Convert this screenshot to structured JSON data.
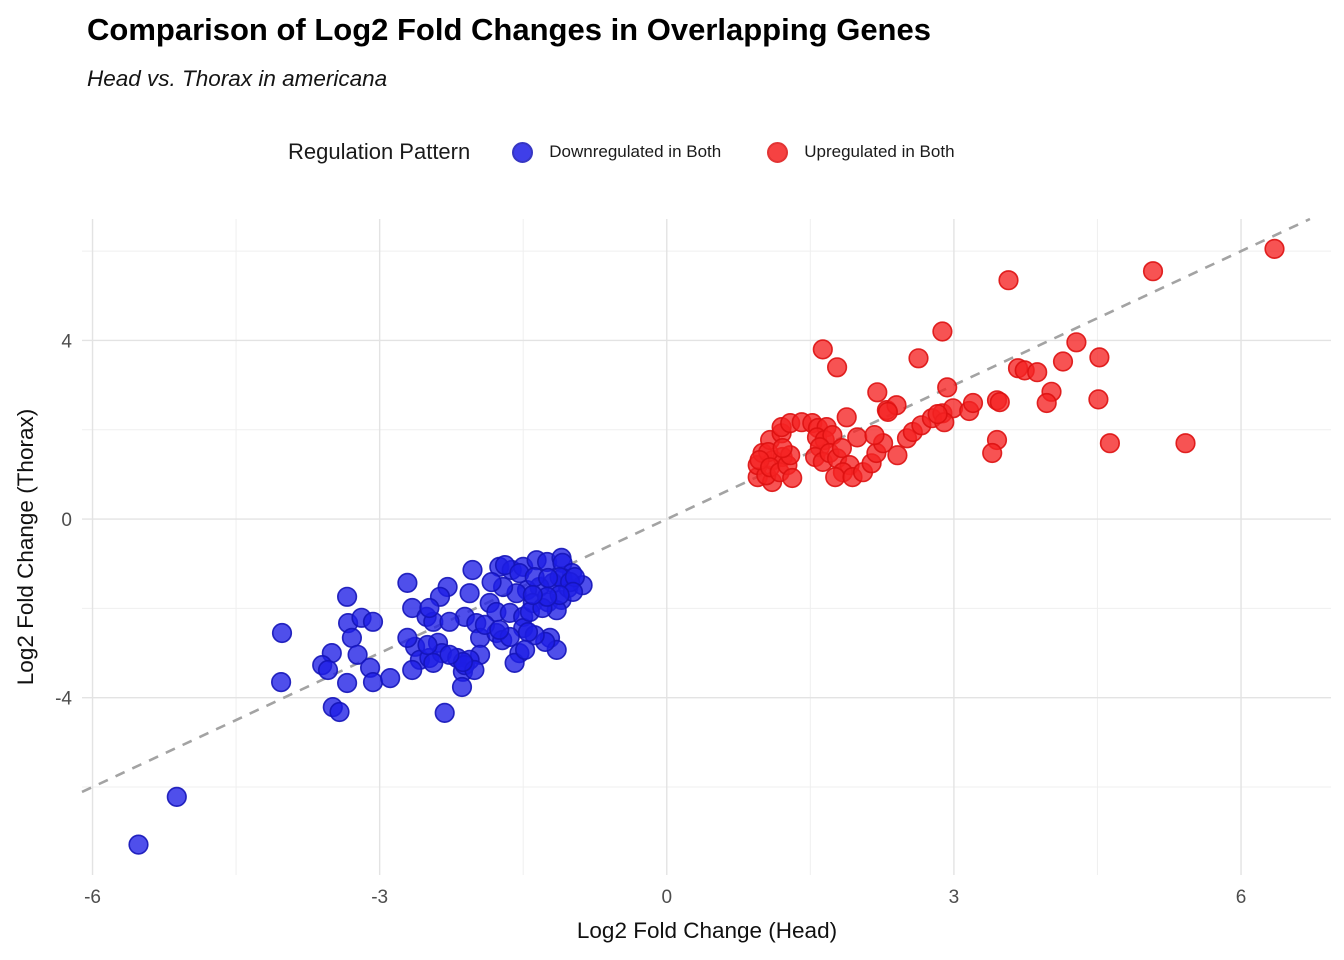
{
  "chart": {
    "title": "Comparison of Log2 Fold Changes in Overlapping Genes",
    "subtitle": "Head vs. Thorax in americana"
  },
  "legend": {
    "title": "Regulation Pattern",
    "position": "top",
    "items": [
      {
        "label": "Downregulated in Both",
        "color": "#1E1EE6",
        "stroke": "#1414B8"
      },
      {
        "label": "Upregulated in Both",
        "color": "#F52222",
        "stroke": "#DD1111"
      }
    ]
  },
  "chart_data": {
    "type": "scatter",
    "title": "Comparison of Log2 Fold Changes in Overlapping Genes",
    "subtitle": "Head vs. Thorax in americana",
    "xlabel": "Log2 Fold Change (Head)",
    "ylabel": "Log2 Fold Change (Thorax)",
    "xlim": [
      -6.11,
      6.94
    ],
    "ylim": [
      -7.97,
      6.72
    ],
    "x_ticks": [
      -6,
      -3,
      0,
      3,
      6
    ],
    "y_ticks": [
      -4,
      0,
      4
    ],
    "x_minor_ticks": [
      -4.5,
      -1.5,
      1.5,
      4.5
    ],
    "y_minor_ticks": [
      -6,
      -2,
      2,
      6
    ],
    "grid": true,
    "legend_position": "top",
    "reference_line": {
      "type": "identity",
      "slope": 1,
      "intercept": 0,
      "style": "dashed",
      "color": "#A3A3A3"
    },
    "series": [
      {
        "name": "Downregulated in Both",
        "color": "#1E1EE6",
        "stroke": "#1414B8",
        "points": [
          [
            -5.52,
            -7.29
          ],
          [
            -5.12,
            -6.22
          ],
          [
            -4.02,
            -2.55
          ],
          [
            -4.03,
            -3.65
          ],
          [
            -3.34,
            -1.74
          ],
          [
            -3.33,
            -2.33
          ],
          [
            -3.19,
            -2.21
          ],
          [
            -3.07,
            -2.3
          ],
          [
            -3.29,
            -2.66
          ],
          [
            -3.23,
            -3.04
          ],
          [
            -3.5,
            -3.0
          ],
          [
            -3.6,
            -3.27
          ],
          [
            -3.54,
            -3.38
          ],
          [
            -3.34,
            -3.67
          ],
          [
            -3.1,
            -3.33
          ],
          [
            -3.07,
            -3.65
          ],
          [
            -3.49,
            -4.21
          ],
          [
            -3.42,
            -4.32
          ],
          [
            -2.71,
            -1.43
          ],
          [
            -2.03,
            -1.14
          ],
          [
            -2.29,
            -1.52
          ],
          [
            -2.37,
            -1.74
          ],
          [
            -2.66,
            -1.99
          ],
          [
            -2.51,
            -2.19
          ],
          [
            -2.44,
            -2.3
          ],
          [
            -2.06,
            -1.66
          ],
          [
            -2.11,
            -2.19
          ],
          [
            -1.99,
            -2.33
          ],
          [
            -1.95,
            -2.66
          ],
          [
            -1.75,
            -1.07
          ],
          [
            -1.62,
            -1.14
          ],
          [
            -1.5,
            -1.07
          ],
          [
            -1.36,
            -0.92
          ],
          [
            -1.25,
            -0.96
          ],
          [
            -1.1,
            -0.87
          ],
          [
            -1.09,
            -0.98
          ],
          [
            -0.99,
            -1.21
          ],
          [
            -1.09,
            -1.32
          ],
          [
            -1.19,
            -1.43
          ],
          [
            -1.33,
            -1.52
          ],
          [
            -1.46,
            -1.59
          ],
          [
            -1.57,
            -1.66
          ],
          [
            -1.71,
            -1.52
          ],
          [
            -1.83,
            -1.41
          ],
          [
            -1.85,
            -1.88
          ],
          [
            -1.78,
            -2.08
          ],
          [
            -1.64,
            -2.1
          ],
          [
            -1.5,
            -2.19
          ],
          [
            -1.4,
            -1.88
          ],
          [
            -1.24,
            -1.86
          ],
          [
            -1.1,
            -1.81
          ],
          [
            -1.03,
            -1.54
          ],
          [
            -0.88,
            -1.48
          ],
          [
            -1.78,
            -2.55
          ],
          [
            -1.72,
            -2.71
          ],
          [
            -1.5,
            -2.44
          ],
          [
            -1.95,
            -3.04
          ],
          [
            -1.54,
            -3.0
          ],
          [
            -1.22,
            -2.66
          ],
          [
            -1.15,
            -2.93
          ],
          [
            -2.39,
            -2.77
          ],
          [
            -2.63,
            -2.86
          ],
          [
            -2.71,
            -2.66
          ],
          [
            -2.58,
            -3.15
          ],
          [
            -2.66,
            -3.38
          ],
          [
            -2.48,
            -3.11
          ],
          [
            -2.35,
            -3.0
          ],
          [
            -2.19,
            -3.11
          ],
          [
            -2.06,
            -3.15
          ],
          [
            -2.13,
            -3.42
          ],
          [
            -2.14,
            -3.76
          ],
          [
            -2.32,
            -4.34
          ],
          [
            -2.89,
            -3.56
          ],
          [
            -2.44,
            -3.22
          ],
          [
            -2.11,
            -3.27
          ],
          [
            -2.01,
            -3.38
          ],
          [
            -1.59,
            -3.22
          ],
          [
            -2.5,
            -2.82
          ],
          [
            -2.27,
            -2.3
          ],
          [
            -1.27,
            -2.75
          ],
          [
            -1.38,
            -2.6
          ],
          [
            -1.45,
            -2.53
          ],
          [
            -1.64,
            -2.64
          ],
          [
            -1.48,
            -2.93
          ],
          [
            -1.12,
            -1.3
          ],
          [
            -1.01,
            -1.41
          ],
          [
            -1.69,
            -1.03
          ],
          [
            -1.43,
            -2.08
          ],
          [
            -1.15,
            -2.04
          ],
          [
            -1.3,
            -1.99
          ],
          [
            -2.48,
            -1.99
          ],
          [
            -2.13,
            -3.2
          ],
          [
            -2.27,
            -3.04
          ],
          [
            -1.54,
            -1.21
          ],
          [
            -1.38,
            -1.3
          ],
          [
            -1.24,
            -1.32
          ],
          [
            -0.96,
            -1.3
          ],
          [
            -0.98,
            -1.63
          ],
          [
            -1.12,
            -1.7
          ],
          [
            -1.25,
            -1.74
          ],
          [
            -1.4,
            -1.7
          ],
          [
            -1.9,
            -2.37
          ],
          [
            -1.75,
            -2.48
          ]
        ]
      },
      {
        "name": "Upregulated in Both",
        "color": "#F52222",
        "stroke": "#DD1111",
        "points": [
          [
            0.95,
            0.94
          ],
          [
            1.1,
            0.83
          ],
          [
            0.95,
            1.21
          ],
          [
            1.0,
            1.48
          ],
          [
            1.04,
            0.98
          ],
          [
            1.11,
            1.32
          ],
          [
            1.21,
            1.39
          ],
          [
            1.08,
            1.77
          ],
          [
            1.2,
            1.92
          ],
          [
            1.06,
            1.5
          ],
          [
            0.97,
            1.32
          ],
          [
            1.08,
            1.16
          ],
          [
            1.18,
            1.05
          ],
          [
            1.26,
            1.21
          ],
          [
            1.29,
            1.43
          ],
          [
            1.21,
            1.59
          ],
          [
            1.31,
            0.92
          ],
          [
            1.2,
            2.06
          ],
          [
            1.29,
            2.15
          ],
          [
            1.41,
            2.17
          ],
          [
            1.52,
            2.15
          ],
          [
            1.58,
            2.04
          ],
          [
            1.67,
            2.06
          ],
          [
            1.57,
            1.83
          ],
          [
            1.65,
            1.77
          ],
          [
            1.73,
            1.88
          ],
          [
            1.6,
            1.61
          ],
          [
            1.55,
            1.39
          ],
          [
            1.63,
            1.28
          ],
          [
            1.7,
            1.48
          ],
          [
            1.78,
            1.36
          ],
          [
            1.83,
            1.59
          ],
          [
            1.88,
            2.28
          ],
          [
            1.99,
            1.83
          ],
          [
            1.91,
            1.21
          ],
          [
            1.84,
            1.05
          ],
          [
            1.76,
            0.94
          ],
          [
            1.94,
            0.94
          ],
          [
            2.05,
            1.05
          ],
          [
            2.14,
            1.25
          ],
          [
            2.19,
            1.48
          ],
          [
            2.26,
            1.7
          ],
          [
            2.17,
            1.88
          ],
          [
            2.3,
            2.44
          ],
          [
            2.4,
            2.55
          ],
          [
            2.51,
            1.81
          ],
          [
            2.57,
            1.95
          ],
          [
            2.41,
            1.43
          ],
          [
            2.66,
            2.1
          ],
          [
            2.77,
            2.26
          ],
          [
            2.88,
            2.37
          ],
          [
            2.99,
            2.48
          ],
          [
            3.16,
            2.42
          ],
          [
            2.9,
            2.17
          ],
          [
            2.83,
            2.35
          ],
          [
            1.63,
            3.8
          ],
          [
            1.78,
            3.4
          ],
          [
            2.63,
            3.6
          ],
          [
            2.88,
            4.2
          ],
          [
            2.93,
            2.95
          ],
          [
            2.2,
            2.84
          ],
          [
            2.31,
            2.4
          ],
          [
            3.2,
            2.6
          ],
          [
            3.45,
            2.66
          ],
          [
            3.67,
            3.38
          ],
          [
            3.48,
            2.62
          ],
          [
            3.45,
            1.77
          ],
          [
            3.4,
            1.48
          ],
          [
            3.74,
            3.33
          ],
          [
            3.87,
            3.29
          ],
          [
            4.02,
            2.85
          ],
          [
            3.97,
            2.6
          ],
          [
            4.28,
            3.96
          ],
          [
            4.14,
            3.53
          ],
          [
            4.52,
            3.62
          ],
          [
            4.51,
            2.68
          ],
          [
            4.63,
            1.7
          ],
          [
            5.42,
            1.7
          ],
          [
            3.57,
            5.35
          ],
          [
            5.08,
            5.55
          ],
          [
            6.35,
            6.05
          ]
        ]
      }
    ]
  },
  "colors": {
    "grid_major": "#E3E3E3",
    "grid_minor": "#EFEFEF",
    "tick_label": "#4D4D4D",
    "axis_title": "#111111",
    "reference_line": "#A3A3A3"
  }
}
